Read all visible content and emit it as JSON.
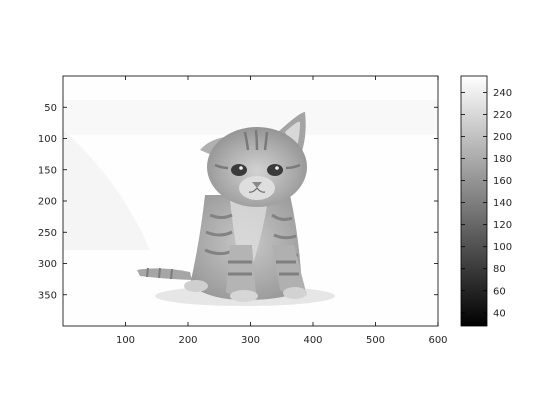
{
  "chart_data": {
    "type": "heatmap",
    "title": "",
    "xlabel": "",
    "ylabel": "",
    "image": {
      "subject": "grayscale photograph of a tabby kitten sitting on a white background",
      "colormap": "gray"
    },
    "xlim": [
      0,
      600
    ],
    "ylim": [
      400,
      0
    ],
    "x_ticks": [
      "100",
      "200",
      "300",
      "400",
      "500",
      "600"
    ],
    "y_ticks": [
      "50",
      "100",
      "150",
      "200",
      "250",
      "300",
      "350"
    ],
    "x_tick_values": [
      100,
      200,
      300,
      400,
      500,
      600
    ],
    "y_tick_values": [
      50,
      100,
      150,
      200,
      250,
      300,
      350
    ],
    "colorbar": {
      "range": [
        28,
        255
      ],
      "ticks": [
        "40",
        "60",
        "80",
        "100",
        "120",
        "140",
        "160",
        "180",
        "200",
        "220",
        "240"
      ],
      "tick_values": [
        40,
        60,
        80,
        100,
        120,
        140,
        160,
        180,
        200,
        220,
        240
      ]
    },
    "grid": false
  }
}
